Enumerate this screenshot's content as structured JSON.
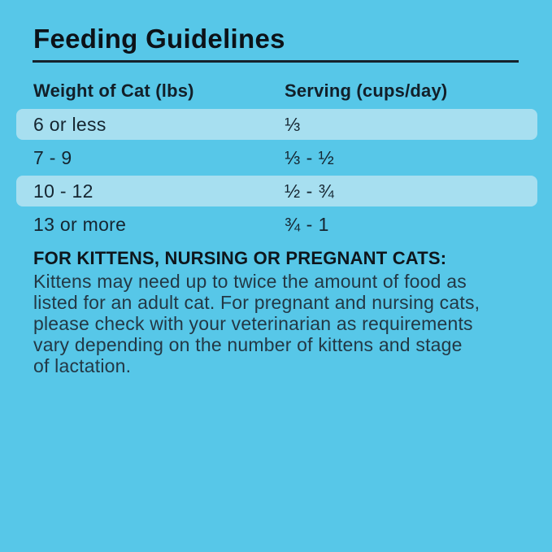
{
  "title": "Feeding Guidelines",
  "table": {
    "columns": [
      "Weight of Cat (lbs)",
      "Serving (cups/day)"
    ],
    "rows": [
      {
        "weight": "6 or less",
        "serving": "⅓",
        "highlighted": true
      },
      {
        "weight": "7 - 9",
        "serving": "⅓ - ½",
        "highlighted": false
      },
      {
        "weight": "10 - 12",
        "serving": "½ - ¾",
        "highlighted": true
      },
      {
        "weight": "13 or more",
        "serving": "¾ - 1",
        "highlighted": false
      }
    ]
  },
  "note": {
    "heading": "FOR KITTENS, NURSING OR PREGNANT CATS:",
    "lines": [
      "Kittens may need up to twice the amount of food as",
      "listed for an adult cat. For pregnant and nursing cats,",
      "please check with your veterinarian as requirements",
      "vary depending on the number of kittens and stage",
      "of lactation."
    ]
  },
  "colors": {
    "background": "#57C7E8",
    "row_highlight": "#A7DFF0",
    "divider": "#16222C",
    "ink": "#152530"
  }
}
